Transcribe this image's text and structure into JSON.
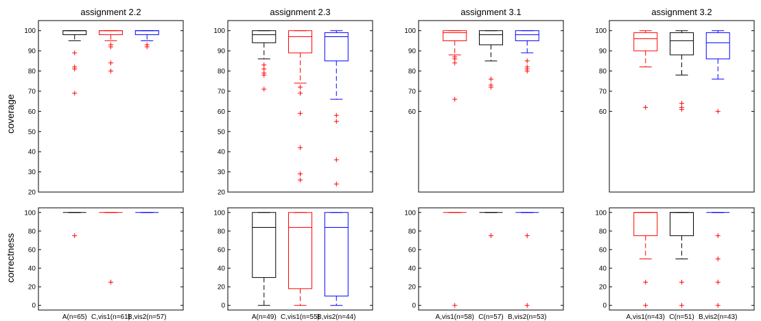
{
  "ylabels": {
    "coverage": "coverage",
    "correctness": "correctness"
  },
  "colors": {
    "A": "#000000",
    "C": "#ff0000",
    "B": "#0000ff",
    "outlier": "#ff0000"
  },
  "chart_data": [
    {
      "type": "box",
      "title": "assignment 2.2",
      "ylabel": "coverage",
      "ylim": [
        20,
        105
      ],
      "yticks": [
        20,
        30,
        40,
        50,
        60,
        70,
        80,
        90,
        100
      ],
      "categories": [
        "A(n=65)",
        "C,vis1(n=61)",
        "B,vis2(n=57)"
      ],
      "series": [
        {
          "color": "#000000",
          "whisker_low": 95,
          "q1": 98,
          "median": 100,
          "q3": 100,
          "whisker_high": 100,
          "outliers": [
            89,
            82,
            81,
            69
          ]
        },
        {
          "color": "#ff0000",
          "whisker_low": 95,
          "q1": 98,
          "median": 100,
          "q3": 100,
          "whisker_high": 100,
          "outliers": [
            93,
            92,
            84,
            80
          ]
        },
        {
          "color": "#0000ff",
          "whisker_low": 95,
          "q1": 98,
          "median": 100,
          "q3": 100,
          "whisker_high": 100,
          "outliers": [
            93,
            92
          ]
        }
      ]
    },
    {
      "type": "box",
      "title": "assignment 2.3",
      "ylabel": "",
      "ylim": [
        20,
        105
      ],
      "yticks": [
        20,
        30,
        40,
        50,
        60,
        70,
        80,
        90,
        100
      ],
      "categories": [
        "A(n=49)",
        "C,vis1(n=55)",
        "B,vis2(n=44)"
      ],
      "series": [
        {
          "color": "#000000",
          "whisker_low": 86,
          "q1": 94,
          "median": 98,
          "q3": 100,
          "whisker_high": 100,
          "outliers": [
            83,
            81,
            79,
            78,
            71
          ]
        },
        {
          "color": "#ff0000",
          "whisker_low": 74,
          "q1": 89,
          "median": 97,
          "q3": 100,
          "whisker_high": 100,
          "outliers": [
            72,
            69,
            59,
            42,
            29,
            26
          ]
        },
        {
          "color": "#0000ff",
          "whisker_low": 66,
          "q1": 85,
          "median": 97,
          "q3": 99,
          "whisker_high": 100,
          "outliers": [
            58,
            55,
            36,
            24
          ]
        }
      ]
    },
    {
      "type": "box",
      "title": "assignment 3.1",
      "ylabel": "",
      "ylim": [
        20,
        105
      ],
      "yticks": [
        60,
        70,
        80,
        90,
        100
      ],
      "categories": [
        "A,vis1(n=58)",
        "C(n=57)",
        "B,vis2(n=53)"
      ],
      "series": [
        {
          "color": "#ff0000",
          "whisker_low": 88,
          "q1": 95,
          "median": 99,
          "q3": 100,
          "whisker_high": 100,
          "outliers": [
            87,
            86,
            84,
            66
          ]
        },
        {
          "color": "#000000",
          "whisker_low": 85,
          "q1": 93,
          "median": 98,
          "q3": 100,
          "whisker_high": 100,
          "outliers": [
            76,
            73,
            72
          ]
        },
        {
          "color": "#0000ff",
          "whisker_low": 89,
          "q1": 95,
          "median": 98,
          "q3": 100,
          "whisker_high": 100,
          "outliers": [
            85,
            82,
            81,
            80
          ]
        }
      ]
    },
    {
      "type": "box",
      "title": "assignment 3.2",
      "ylabel": "",
      "ylim": [
        20,
        105
      ],
      "yticks": [
        60,
        70,
        80,
        90,
        100
      ],
      "categories": [
        "A,vis1(n=43)",
        "C(n=51)",
        "B,vis2(n=43)"
      ],
      "series": [
        {
          "color": "#ff0000",
          "whisker_low": 82,
          "q1": 90,
          "median": 96,
          "q3": 99,
          "whisker_high": 100,
          "outliers": [
            62
          ]
        },
        {
          "color": "#000000",
          "whisker_low": 78,
          "q1": 88,
          "median": 95,
          "q3": 99,
          "whisker_high": 100,
          "outliers": [
            64,
            62,
            61
          ]
        },
        {
          "color": "#0000ff",
          "whisker_low": 76,
          "q1": 86,
          "median": 94,
          "q3": 99,
          "whisker_high": 100,
          "outliers": [
            60
          ]
        }
      ]
    },
    {
      "type": "box",
      "title": "",
      "ylabel": "correctness",
      "ylim": [
        -5,
        105
      ],
      "yticks": [
        0,
        20,
        40,
        60,
        80,
        100
      ],
      "categories": [
        "A(n=65)",
        "C,vis1(n=61)",
        "B,vis2(n=57)"
      ],
      "series": [
        {
          "color": "#000000",
          "whisker_low": 100,
          "q1": 100,
          "median": 100,
          "q3": 100,
          "whisker_high": 100,
          "outliers": [
            75
          ]
        },
        {
          "color": "#ff0000",
          "whisker_low": 100,
          "q1": 100,
          "median": 100,
          "q3": 100,
          "whisker_high": 100,
          "outliers": [
            25
          ]
        },
        {
          "color": "#0000ff",
          "whisker_low": 100,
          "q1": 100,
          "median": 100,
          "q3": 100,
          "whisker_high": 100,
          "outliers": []
        }
      ]
    },
    {
      "type": "box",
      "title": "",
      "ylabel": "",
      "ylim": [
        -5,
        105
      ],
      "yticks": [
        0,
        20,
        40,
        60,
        80,
        100
      ],
      "categories": [
        "A(n=49)",
        "C,vis1(n=55)",
        "B,vis2(n=44)"
      ],
      "series": [
        {
          "color": "#000000",
          "whisker_low": 0,
          "q1": 30,
          "median": 84,
          "q3": 100,
          "whisker_high": 100,
          "outliers": []
        },
        {
          "color": "#ff0000",
          "whisker_low": 0,
          "q1": 18,
          "median": 84,
          "q3": 100,
          "whisker_high": 100,
          "outliers": []
        },
        {
          "color": "#0000ff",
          "whisker_low": 0,
          "q1": 10,
          "median": 84,
          "q3": 100,
          "whisker_high": 100,
          "outliers": []
        }
      ]
    },
    {
      "type": "box",
      "title": "",
      "ylabel": "",
      "ylim": [
        -5,
        105
      ],
      "yticks": [
        0,
        20,
        40,
        60,
        80,
        100
      ],
      "categories": [
        "A,vis1(n=58)",
        "C(n=57)",
        "B,vis2(n=53)"
      ],
      "series": [
        {
          "color": "#ff0000",
          "whisker_low": 100,
          "q1": 100,
          "median": 100,
          "q3": 100,
          "whisker_high": 100,
          "outliers": [
            0
          ]
        },
        {
          "color": "#000000",
          "whisker_low": 100,
          "q1": 100,
          "median": 100,
          "q3": 100,
          "whisker_high": 100,
          "outliers": [
            75
          ]
        },
        {
          "color": "#0000ff",
          "whisker_low": 100,
          "q1": 100,
          "median": 100,
          "q3": 100,
          "whisker_high": 100,
          "outliers": [
            75,
            0
          ]
        }
      ]
    },
    {
      "type": "box",
      "title": "",
      "ylabel": "",
      "ylim": [
        -5,
        105
      ],
      "yticks": [
        0,
        20,
        40,
        60,
        80,
        100
      ],
      "categories": [
        "A,vis1(n=43)",
        "C(n=51)",
        "B,vis2(n=43)"
      ],
      "series": [
        {
          "color": "#ff0000",
          "whisker_low": 50,
          "q1": 75,
          "median": 100,
          "q3": 100,
          "whisker_high": 100,
          "outliers": [
            25,
            0
          ]
        },
        {
          "color": "#000000",
          "whisker_low": 50,
          "q1": 75,
          "median": 100,
          "q3": 100,
          "whisker_high": 100,
          "outliers": [
            25,
            0
          ]
        },
        {
          "color": "#0000ff",
          "whisker_low": 100,
          "q1": 100,
          "median": 100,
          "q3": 100,
          "whisker_high": 100,
          "outliers": [
            75,
            50,
            25,
            0
          ]
        }
      ]
    }
  ]
}
